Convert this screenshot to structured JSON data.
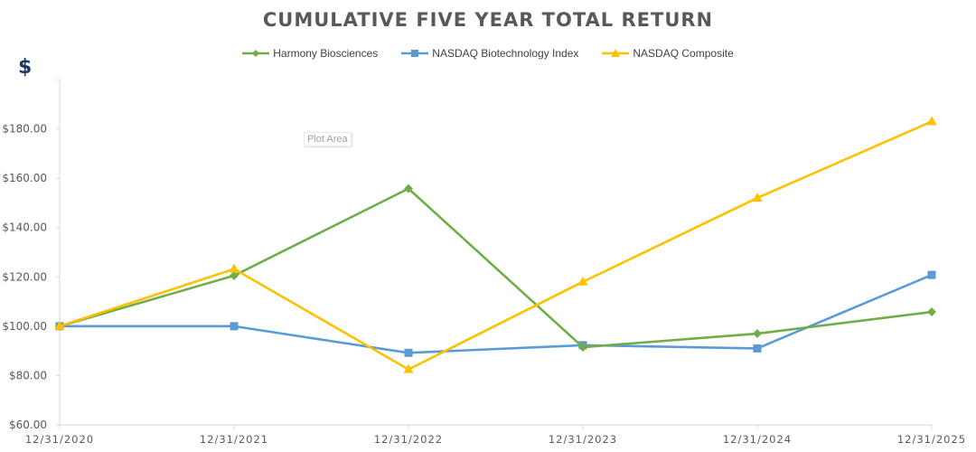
{
  "chart_data": {
    "type": "line",
    "title": "CUMULATIVE FIVE YEAR TOTAL RETURN",
    "y_unit_symbol": "$",
    "categories": [
      "12/31/2020",
      "12/31/2021",
      "12/31/2022",
      "12/31/2023",
      "12/31/2024",
      "12/31/2025"
    ],
    "y_ticks": [
      "$60.00",
      "$80.00",
      "$100.00",
      "$120.00",
      "$140.00",
      "$160.00",
      "$180.00"
    ],
    "ylim": [
      60,
      200
    ],
    "legend_position": "top-center",
    "grid": false,
    "series": [
      {
        "name": "Harmony Biosciences",
        "color": "#70ad47",
        "marker": "diamond",
        "values": [
          100.0,
          120.5,
          155.8,
          91.5,
          97.0,
          105.8
        ]
      },
      {
        "name": "NASDAQ Biotechnology Index",
        "color": "#5b9bd5",
        "marker": "square",
        "values": [
          100.0,
          100.0,
          89.2,
          92.3,
          91.0,
          120.8
        ]
      },
      {
        "name": "NASDAQ Composite",
        "color": "#ffc000",
        "marker": "triangle",
        "values": [
          100.0,
          123.2,
          82.5,
          118.0,
          152.0,
          183.0
        ]
      }
    ],
    "tooltip_text": "Plot Area"
  }
}
